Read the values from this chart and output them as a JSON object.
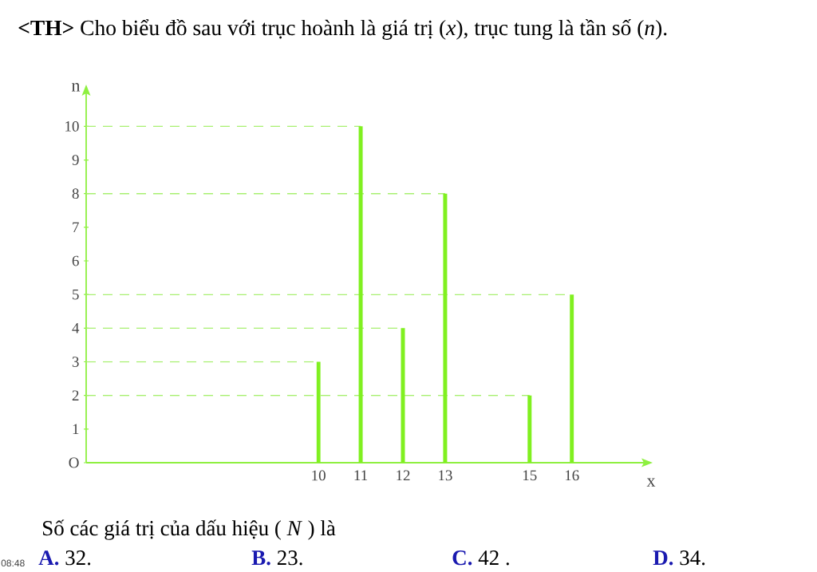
{
  "chart_data": {
    "type": "bar",
    "title": "**<TH>** Cho biểu đồ sau với trục hoành là giá trị (*x*), trục tung là tần số (*n*).",
    "xlabel": "x",
    "ylabel": "n",
    "x": [
      10,
      11,
      12,
      13,
      15,
      16
    ],
    "values": [
      3,
      10,
      4,
      8,
      2,
      5
    ],
    "color": "#80f020",
    "xlim": [
      4.5,
      17.8
    ],
    "ylim": [
      0,
      11.1
    ],
    "xticks": [
      10,
      11,
      12,
      13,
      15,
      16
    ],
    "yticks": [
      {
        "value": 0,
        "label": "O"
      },
      1,
      2,
      3,
      4,
      5,
      6,
      7,
      8,
      9,
      10
    ],
    "ref_lines": [
      {
        "axis": "y",
        "value": 10,
        "color": "#a8f070",
        "line_style": "dashed"
      },
      {
        "axis": "y",
        "value": 8,
        "color": "#a8f070",
        "line_style": "dashed"
      },
      {
        "axis": "y",
        "value": 5,
        "color": "#a8f070",
        "line_style": "dashed"
      },
      {
        "axis": "y",
        "value": 4,
        "color": "#a8f070",
        "line_style": "dashed"
      },
      {
        "axis": "y",
        "value": 3,
        "color": "#a8f070",
        "line_style": "dashed"
      },
      {
        "axis": "y",
        "value": 2,
        "color": "#a8f070",
        "line_style": "dashed"
      }
    ],
    "annotations": [
      "Số các giá trị của dấu hiệu ( *N* ) là",
      "**A.** 32.",
      "**B.** 23.",
      "**C.** 42 .",
      "**D.** 34.",
      "08:48"
    ]
  }
}
